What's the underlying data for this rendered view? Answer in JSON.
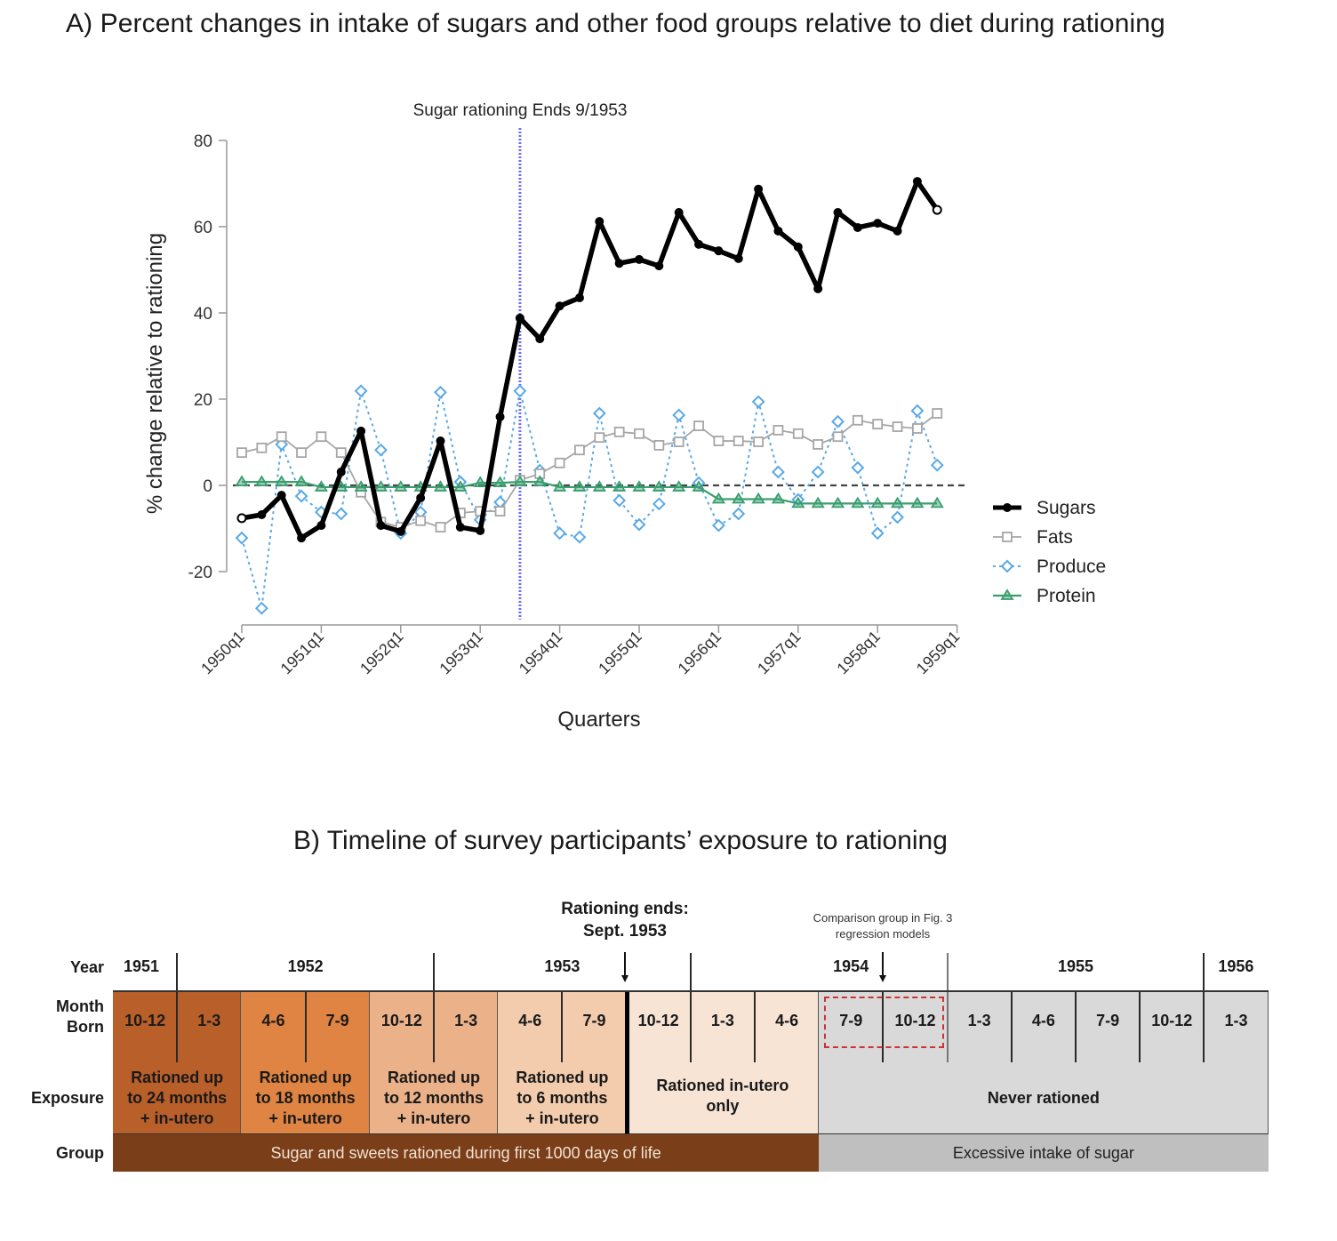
{
  "panel_a": {
    "title": "A) Percent changes in intake of sugars and other food groups relative to diet during rationing"
  },
  "panel_b": {
    "title": "B) Timeline of survey participants’ exposure to rationing",
    "row_labels": {
      "year": "Year",
      "month_line1": "Month",
      "month_line2": "Born",
      "exposure": "Exposure",
      "group": "Group"
    },
    "years": [
      "1951",
      "1952",
      "1953",
      "1954",
      "1955",
      "1956"
    ],
    "months": [
      "10-12",
      "1-3",
      "4-6",
      "7-9",
      "10-12",
      "1-3",
      "4-6",
      "7-9",
      "10-12",
      "1-3",
      "4-6",
      "7-9",
      "10-12",
      "1-3",
      "4-6",
      "7-9",
      "10-12",
      "1-3"
    ],
    "exposures": [
      {
        "line1": "Rationed up",
        "line2": "to 24 months",
        "line3": "+ in-utero",
        "color": "#b95f2a"
      },
      {
        "line1": "Rationed up",
        "line2": "to 18 months",
        "line3": "+ in-utero",
        "color": "#df8442"
      },
      {
        "line1": "Rationed up",
        "line2": "to 12 months",
        "line3": "+ in-utero",
        "color": "#ebb189"
      },
      {
        "line1": "Rationed up",
        "line2": "to 6 months",
        "line3": "+ in-utero",
        "color": "#f3ccad"
      },
      {
        "line1": "Rationed in-utero",
        "line2": "only",
        "line3": "",
        "color": "#f8e4d5"
      },
      {
        "line1": "Never rationed",
        "line2": "",
        "line3": "",
        "color": "#d9d9d9"
      }
    ],
    "groups": [
      {
        "label": "Sugar and sweets rationed during first 1000 days of life",
        "color": "#7a3e19"
      },
      {
        "label": "Excessive intake of sugar",
        "color": "#bfbfbf"
      }
    ],
    "rationing_ends": {
      "line1": "Rationing ends:",
      "line2": "Sept. 1953"
    },
    "comparison_note": {
      "line1": "Comparison group in Fig. 3",
      "line2": "regression models",
      "color": "#cc3333"
    }
  },
  "chart_data": {
    "type": "line",
    "title": "A) Percent changes in intake of sugars and other food groups relative to diet during rationing",
    "xlabel": "Quarters",
    "ylabel": "% change relative to rationing",
    "ylim": [
      -32,
      80
    ],
    "yticks": [
      -20,
      0,
      20,
      40,
      60,
      80
    ],
    "xtick_labels": [
      "1950q1",
      "1951q1",
      "1952q1",
      "1953q1",
      "1954q1",
      "1955q1",
      "1956q1",
      "1957q1",
      "1958q1",
      "1959q1"
    ],
    "x_range_quarters": [
      0,
      36
    ],
    "x": [
      "1950q1",
      "1950q2",
      "1950q3",
      "1950q4",
      "1951q1",
      "1951q2",
      "1951q3",
      "1951q4",
      "1952q1",
      "1952q2",
      "1952q3",
      "1952q4",
      "1953q1",
      "1953q2",
      "1953q3",
      "1953q4",
      "1954q1",
      "1954q2",
      "1954q3",
      "1954q4",
      "1955q1",
      "1955q2",
      "1955q3",
      "1955q4",
      "1956q1",
      "1956q2",
      "1956q3",
      "1956q4",
      "1957q1",
      "1957q2",
      "1957q3",
      "1957q4",
      "1958q1",
      "1958q2",
      "1958q3",
      "1958q4"
    ],
    "reference_line": {
      "value": 0,
      "style": "dashed",
      "color": "#444444"
    },
    "vertical_marker": {
      "x": "1953q3",
      "label": "Sugar rationing Ends 9/1953",
      "color": "#6b6bff"
    },
    "legend": {
      "position": "right"
    },
    "series": [
      {
        "name": "Sugars",
        "color": "#000000",
        "marker": "circle",
        "values": [
          -7.6,
          -6.8,
          -2.3,
          -12.2,
          -9.3,
          3.1,
          12.6,
          -9.3,
          -10.7,
          -2.9,
          10.3,
          -9.7,
          -10.5,
          15.9,
          38.8,
          34.0,
          41.6,
          43.5,
          61.2,
          51.5,
          52.4,
          50.9,
          63.3,
          55.9,
          54.4,
          52.6,
          68.7,
          59.0,
          55.3,
          45.6,
          63.3,
          59.8,
          60.8,
          59.0,
          70.5,
          63.9
        ]
      },
      {
        "name": "Fats",
        "color": "#a6a6a6",
        "marker": "square",
        "values": [
          7.6,
          8.7,
          11.3,
          7.6,
          11.3,
          7.6,
          -1.6,
          -8.5,
          -9.7,
          -8.2,
          -9.7,
          -6.4,
          -6.0,
          -6.0,
          1.2,
          2.7,
          5.2,
          8.2,
          11.1,
          12.4,
          12.0,
          9.3,
          10.1,
          13.8,
          10.3,
          10.3,
          10.1,
          12.8,
          12.0,
          9.5,
          11.3,
          15.1,
          14.2,
          13.6,
          13.2,
          16.7
        ]
      },
      {
        "name": "Produce",
        "color": "#5aa9e6",
        "marker": "diamond",
        "values": [
          -12.2,
          -28.5,
          9.5,
          -2.5,
          -6.2,
          -6.6,
          21.9,
          8.2,
          -11.1,
          -6.2,
          21.6,
          0.8,
          -8.0,
          -3.9,
          21.9,
          3.5,
          -11.1,
          -12.0,
          16.7,
          -3.5,
          -9.1,
          -4.3,
          16.3,
          0.6,
          -9.3,
          -6.6,
          19.4,
          3.1,
          -3.3,
          3.1,
          14.8,
          4.1,
          -11.1,
          -7.4,
          17.3,
          4.7
        ]
      },
      {
        "name": "Protein",
        "color": "#3a9e6f",
        "marker": "triangle",
        "values": [
          0.8,
          0.8,
          0.8,
          0.8,
          -0.4,
          -0.4,
          -0.4,
          -0.4,
          -0.4,
          -0.4,
          -0.4,
          -0.4,
          0.6,
          0.6,
          0.8,
          0.8,
          -0.4,
          -0.4,
          -0.4,
          -0.4,
          -0.4,
          -0.4,
          -0.4,
          -0.4,
          -3.2,
          -3.2,
          -3.2,
          -3.2,
          -4.2,
          -4.2,
          -4.2,
          -4.2,
          -4.2,
          -4.2,
          -4.2,
          -4.2
        ]
      }
    ]
  }
}
